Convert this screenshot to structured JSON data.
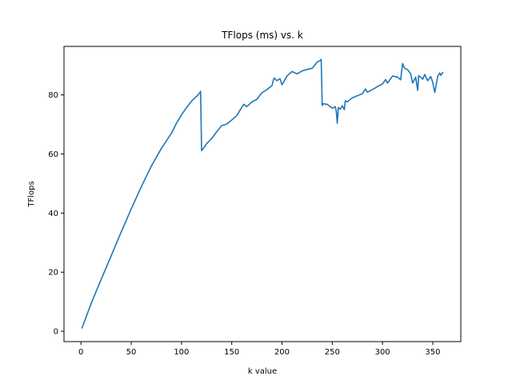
{
  "chart_data": {
    "type": "line",
    "title": "TFlops (ms) vs. k",
    "xlabel": "k value",
    "ylabel": "TFlops",
    "xlim": [
      -16.9,
      377.9
    ],
    "ylim": [
      -3.5,
      96.4
    ],
    "xticks": [
      0,
      50,
      100,
      150,
      200,
      250,
      300,
      350
    ],
    "yticks": [
      0,
      20,
      40,
      60,
      80
    ],
    "grid": false,
    "legend": "none",
    "series": [
      {
        "color": "#1f77b4",
        "x": [
          1,
          10,
          20,
          30,
          40,
          50,
          60,
          70,
          80,
          90,
          95,
          100,
          105,
          110,
          115,
          118,
          119,
          120,
          122,
          125,
          130,
          135,
          140,
          145,
          150,
          155,
          160,
          162,
          165,
          170,
          175,
          180,
          185,
          190,
          192,
          195,
          198,
          200,
          205,
          210,
          215,
          220,
          225,
          230,
          235,
          238,
          239,
          240,
          241,
          245,
          250,
          253,
          254,
          255,
          256,
          258,
          260,
          262,
          263,
          265,
          268,
          270,
          275,
          280,
          283,
          285,
          290,
          295,
          300,
          303,
          305,
          310,
          315,
          318,
          320,
          322,
          325,
          328,
          330,
          333,
          335,
          336,
          338,
          340,
          342,
          345,
          348,
          350,
          352,
          355,
          357,
          358,
          360
        ],
        "y": [
          1.1,
          9.3,
          17.5,
          25.5,
          33.6,
          41.4,
          48.9,
          55.9,
          61.9,
          67.0,
          70.4,
          73.2,
          75.7,
          77.9,
          79.5,
          80.6,
          81.2,
          61.1,
          62.0,
          63.5,
          65.2,
          67.5,
          69.6,
          70.1,
          71.5,
          73.0,
          75.8,
          76.8,
          76.0,
          77.6,
          78.5,
          80.7,
          81.8,
          83.1,
          85.7,
          84.8,
          85.5,
          83.4,
          86.4,
          87.9,
          87.1,
          88.1,
          88.6,
          89.0,
          91.1,
          91.6,
          92.0,
          76.4,
          77.0,
          76.8,
          75.5,
          76.0,
          74.5,
          70.4,
          75.7,
          75.2,
          76.3,
          75.0,
          78.0,
          77.6,
          78.5,
          79.0,
          79.7,
          80.4,
          82.0,
          80.9,
          81.8,
          82.8,
          83.7,
          85.2,
          84.0,
          86.4,
          86.0,
          85.1,
          90.6,
          89.0,
          88.5,
          87.1,
          84.0,
          86.0,
          81.5,
          86.5,
          86.0,
          85.3,
          86.9,
          84.8,
          86.2,
          84.2,
          80.8,
          86.4,
          87.4,
          86.6,
          87.6
        ]
      }
    ]
  }
}
